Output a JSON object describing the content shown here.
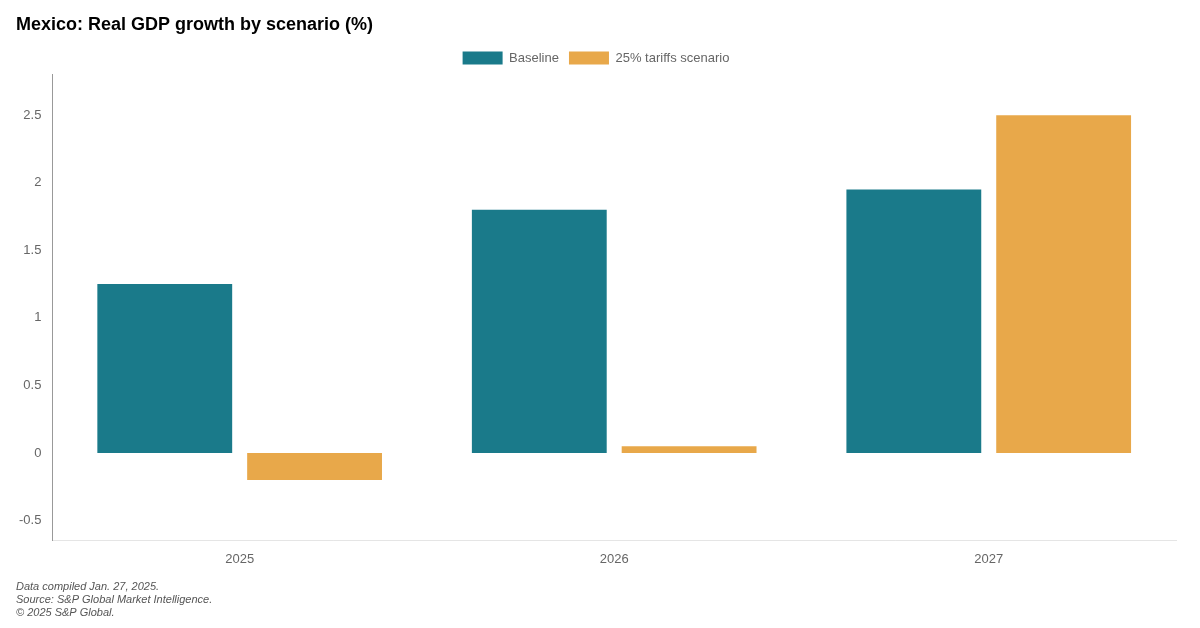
{
  "chart_data": {
    "type": "bar",
    "title": "Mexico: Real GDP growth by scenario (%)",
    "categories": [
      "2025",
      "2026",
      "2027"
    ],
    "series": [
      {
        "name": "Baseline",
        "color": "#1a7a8a",
        "values": [
          1.25,
          1.8,
          1.95
        ]
      },
      {
        "name": "25% tariffs scenario",
        "color": "#e8a84a",
        "values": [
          -0.2,
          0.05,
          2.5
        ]
      }
    ],
    "ylim": [
      -0.65,
      2.8
    ],
    "yticks": [
      -0.5,
      0,
      0.5,
      1,
      1.5,
      2,
      2.5
    ],
    "grid": false,
    "legend": "top",
    "annotations": [
      "Data compiled Jan. 27, 2025.",
      "Source: S&P Global Market Intelligence.",
      "© 2025 S&P Global."
    ]
  }
}
